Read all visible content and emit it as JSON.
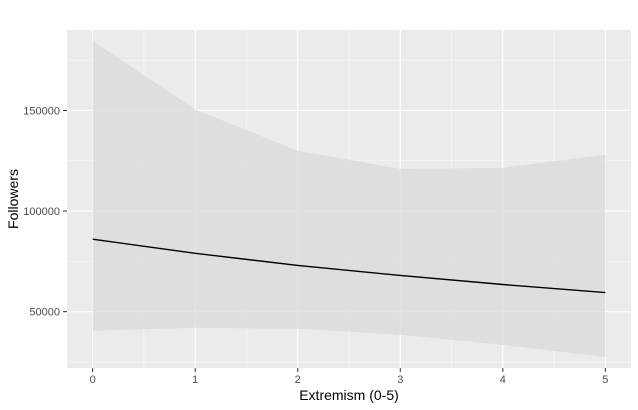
{
  "chart_data": {
    "type": "line",
    "title": "",
    "xlabel": "Extremism (0-5)",
    "ylabel": "Followers",
    "xlim": [
      -0.25,
      5.25
    ],
    "ylim": [
      22000,
      190000
    ],
    "x_ticks": [
      0,
      1,
      2,
      3,
      4,
      5
    ],
    "y_ticks": [
      50000,
      100000,
      150000
    ],
    "y_tick_labels": [
      "50000",
      "100000",
      "150000"
    ],
    "grid": true,
    "legend": "none",
    "series": [
      {
        "x": [
          0,
          1,
          2,
          3,
          4,
          5
        ],
        "y": [
          86000,
          79000,
          73000,
          68000,
          63500,
          59500
        ],
        "lower": [
          40500,
          42000,
          41500,
          38500,
          33500,
          27500
        ],
        "upper": [
          184500,
          150500,
          130000,
          121000,
          121500,
          128000
        ]
      }
    ],
    "colors": {
      "panel": "#ebebeb",
      "grid_major": "#ffffff",
      "ribbon": "#d9d9d9",
      "line": "#000000"
    }
  }
}
